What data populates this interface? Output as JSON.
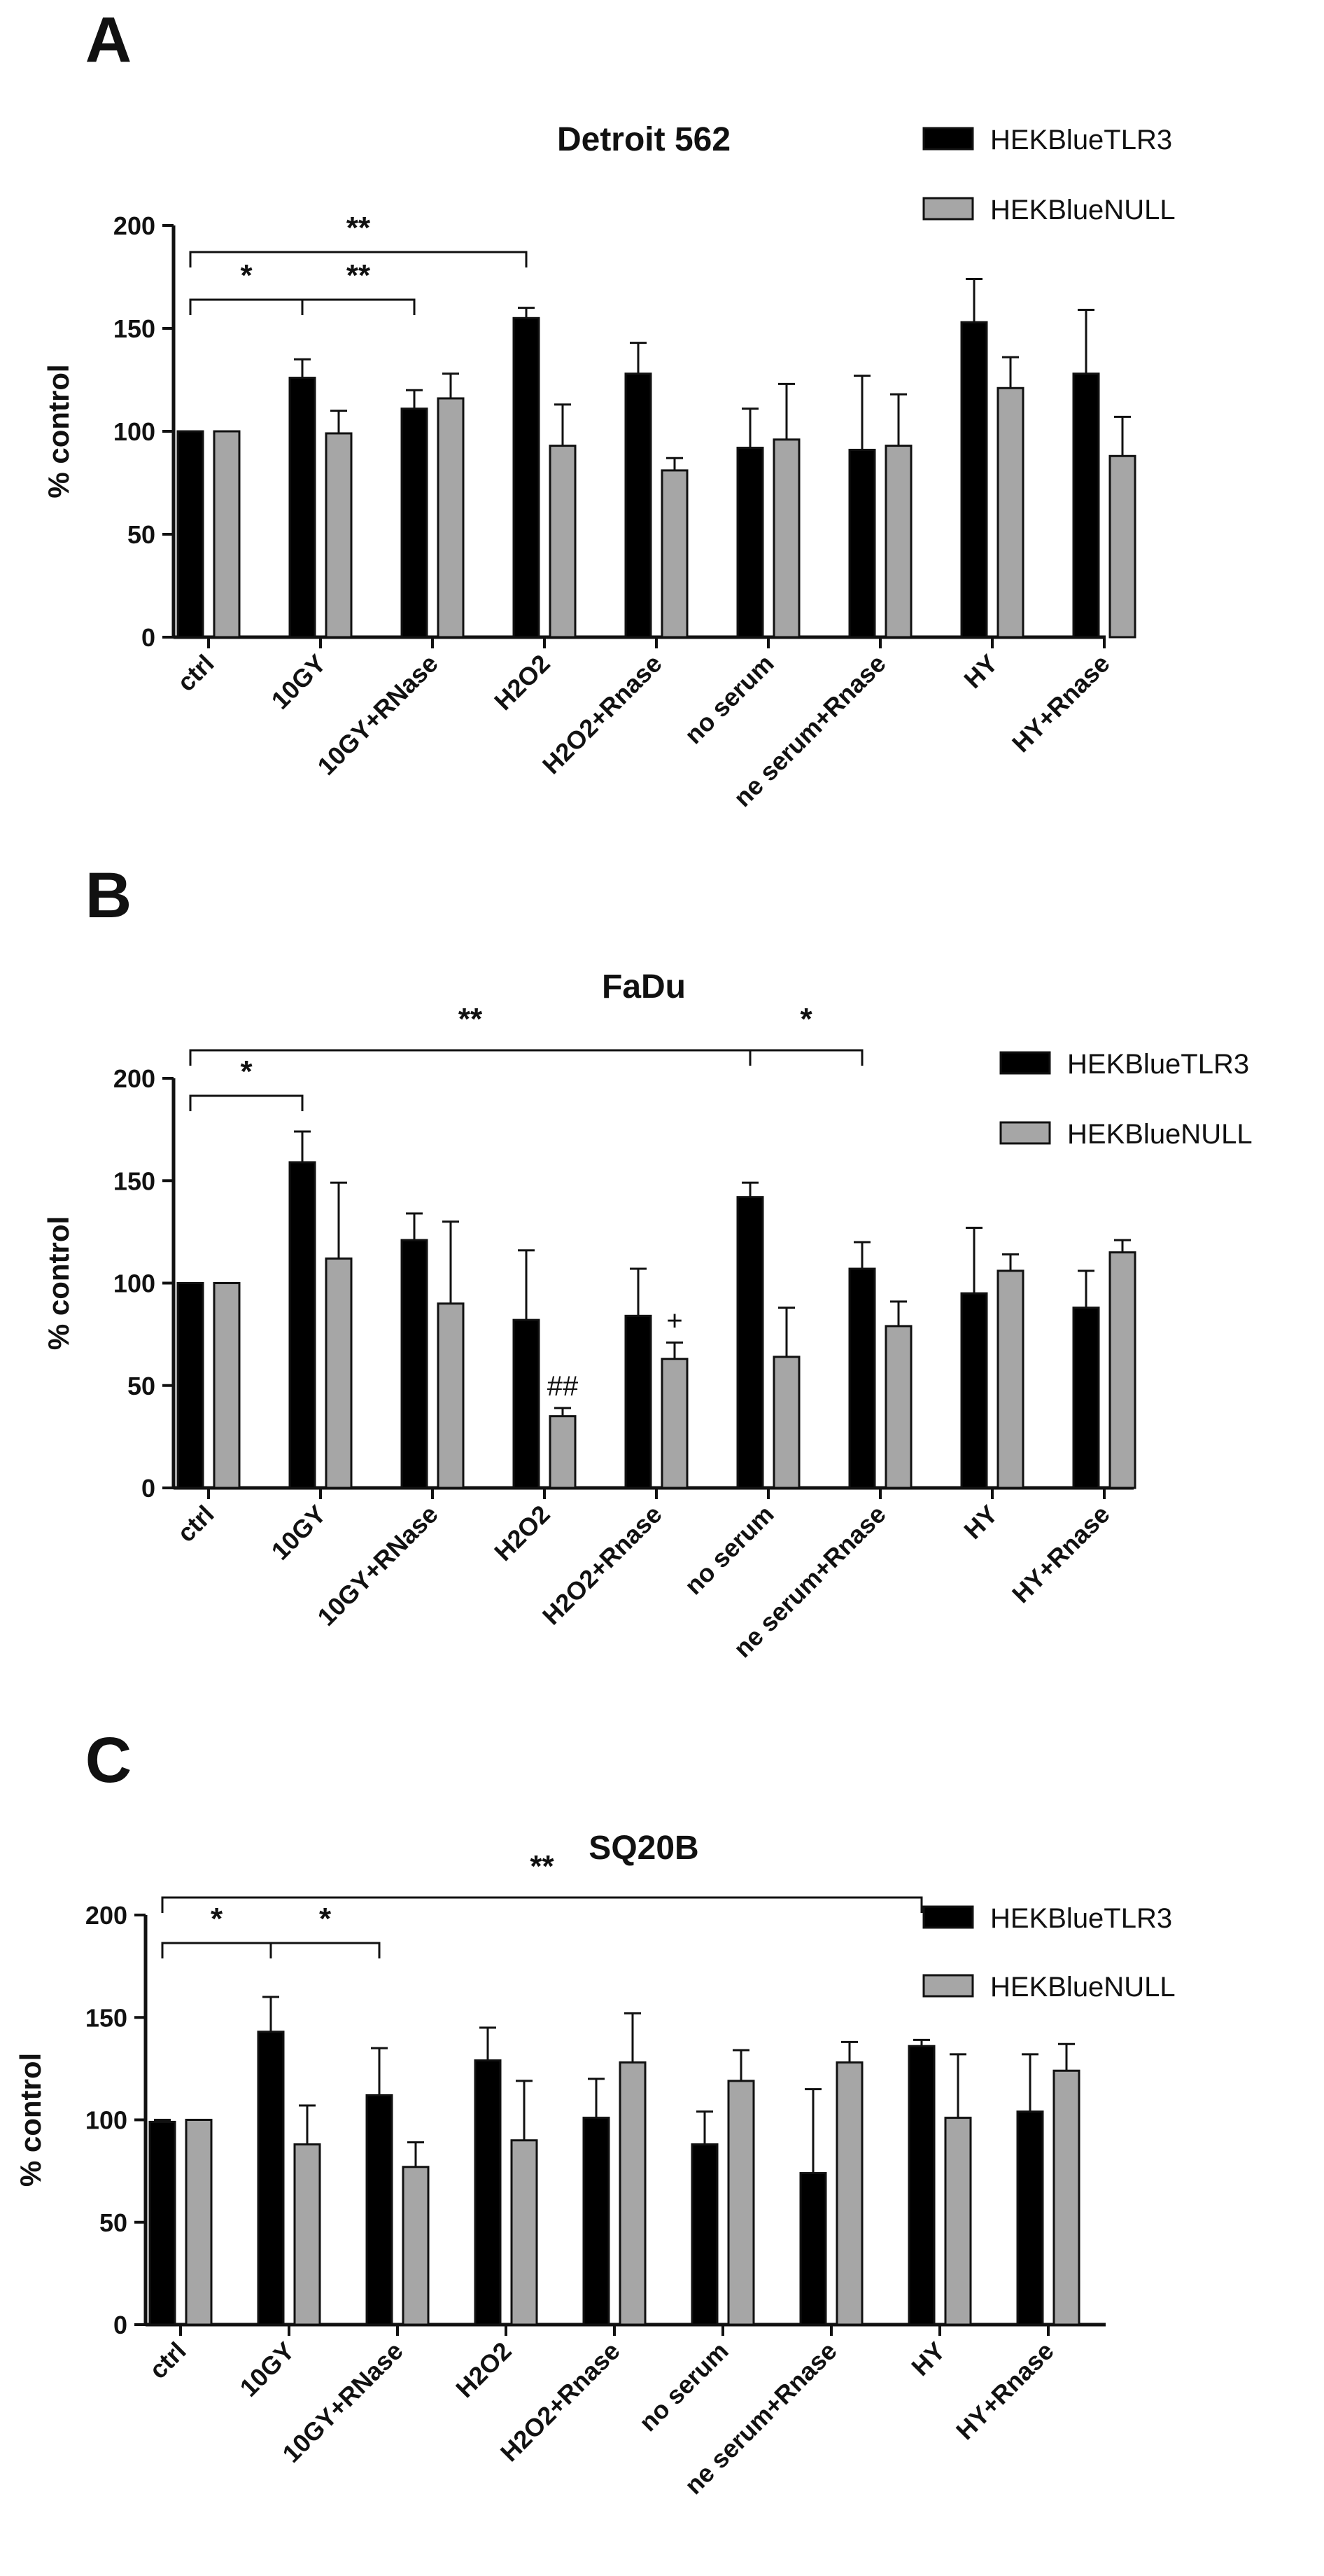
{
  "colors": {
    "series1": "#000000",
    "series2": "#a6a6a6",
    "axis": "#111111"
  },
  "chart_data": [
    {
      "type": "bar",
      "panel": "A",
      "title": "Detroit 562",
      "ylabel": "% control",
      "ylim": [
        0,
        200
      ],
      "yticks": [
        0,
        50,
        100,
        150,
        200
      ],
      "categories": [
        "ctrl",
        "10GY",
        "10GY+RNase",
        "H2O2",
        "H2O2+Rnase",
        "no serum",
        "ne serum+Rnase",
        "HY",
        "HY+Rnase"
      ],
      "series": [
        {
          "name": "HEKBlueTLR3",
          "values": [
            100,
            126,
            111,
            155,
            128,
            92,
            91,
            153,
            128
          ],
          "errors": [
            0,
            9,
            9,
            5,
            15,
            19,
            36,
            21,
            31
          ]
        },
        {
          "name": "HEKBlueNULL",
          "values": [
            100,
            99,
            116,
            93,
            81,
            96,
            93,
            121,
            88
          ],
          "errors": [
            0,
            11,
            12,
            20,
            6,
            27,
            25,
            15,
            19
          ]
        }
      ],
      "legend_position": "top-right",
      "significance": [
        {
          "from": "ctrl",
          "to": "H2O2",
          "label": "**"
        },
        {
          "from": "ctrl",
          "to": "10GY",
          "label": "*"
        },
        {
          "from": "10GY",
          "to": "10GY+RNase",
          "label": "**"
        }
      ],
      "annotations": []
    },
    {
      "type": "bar",
      "panel": "B",
      "title": "FaDu",
      "ylabel": "% control",
      "ylim": [
        0,
        200
      ],
      "yticks": [
        0,
        50,
        100,
        150,
        200
      ],
      "categories": [
        "ctrl",
        "10GY",
        "10GY+RNase",
        "H2O2",
        "H2O2+Rnase",
        "no serum",
        "ne serum+Rnase",
        "HY",
        "HY+Rnase"
      ],
      "series": [
        {
          "name": "HEKBlueTLR3",
          "values": [
            100,
            159,
            121,
            82,
            84,
            142,
            107,
            95,
            88
          ],
          "errors": [
            0,
            15,
            13,
            34,
            23,
            7,
            13,
            32,
            18
          ]
        },
        {
          "name": "HEKBlueNULL",
          "values": [
            100,
            112,
            90,
            35,
            63,
            64,
            79,
            106,
            115
          ],
          "errors": [
            0,
            37,
            40,
            4,
            8,
            24,
            12,
            8,
            6
          ]
        }
      ],
      "legend_position": "right",
      "significance": [
        {
          "from": "ctrl",
          "to": "no serum",
          "label": "**"
        },
        {
          "from": "ctrl",
          "to": "10GY",
          "label": "*"
        },
        {
          "from": "no serum",
          "to": "ne serum+Rnase",
          "label": "*"
        }
      ],
      "annotations": [
        {
          "category": "H2O2",
          "series": 1,
          "text": "##"
        },
        {
          "category": "H2O2+Rnase",
          "series": 1,
          "text": "+"
        }
      ]
    },
    {
      "type": "bar",
      "panel": "C",
      "title": "SQ20B",
      "ylabel": "% control",
      "ylim": [
        0,
        200
      ],
      "yticks": [
        0,
        50,
        100,
        150,
        200
      ],
      "categories": [
        "ctrl",
        "10GY",
        "10GY+RNase",
        "H2O2",
        "H2O2+Rnase",
        "no serum",
        "ne serum+Rnase",
        "HY",
        "HY+Rnase"
      ],
      "series": [
        {
          "name": "HEKBlueTLR3",
          "values": [
            99,
            143,
            112,
            129,
            101,
            88,
            74,
            136,
            104
          ],
          "errors": [
            1,
            17,
            23,
            16,
            19,
            16,
            41,
            3,
            28
          ]
        },
        {
          "name": "HEKBlueNULL",
          "values": [
            100,
            88,
            77,
            90,
            128,
            119,
            128,
            101,
            124
          ],
          "errors": [
            0,
            19,
            12,
            29,
            24,
            15,
            10,
            31,
            13
          ]
        }
      ],
      "legend_position": "top-right",
      "significance": [
        {
          "from": "ctrl",
          "to": "HY",
          "label": "**"
        },
        {
          "from": "ctrl",
          "to": "10GY",
          "label": "*"
        },
        {
          "from": "10GY",
          "to": "10GY+RNase",
          "label": "*"
        }
      ],
      "annotations": []
    }
  ]
}
